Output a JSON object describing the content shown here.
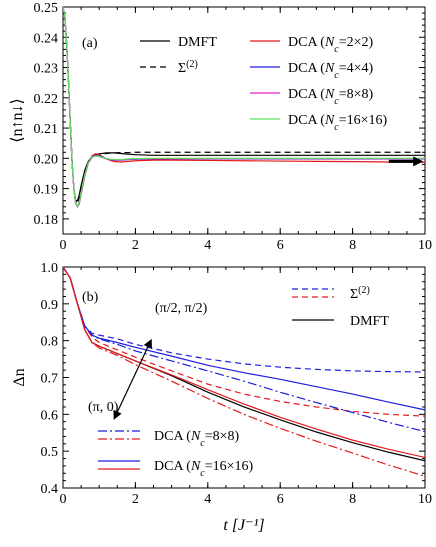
{
  "chart_data": [
    {
      "type": "line",
      "panel_label": "(a)",
      "ylabel": "⟨n↑n↓⟩",
      "xlim": [
        0,
        10
      ],
      "ylim": [
        0.175,
        0.25
      ],
      "x_ticks": [
        0,
        2,
        4,
        6,
        8,
        10
      ],
      "x_tick_labels": [
        "0",
        "2",
        "4",
        "6",
        "8",
        "10"
      ],
      "y_ticks": [
        0.18,
        0.19,
        0.2,
        0.21,
        0.22,
        0.23,
        0.24,
        0.25
      ],
      "y_tick_labels": [
        "0.18",
        "0.19",
        "0.20",
        "0.21",
        "0.22",
        "0.23",
        "0.24",
        "0.25"
      ],
      "legend_position": "top-right",
      "series": [
        {
          "name": "DMFT",
          "legend": {
            "text": "DMFT",
            "sub": "",
            "tail": ""
          },
          "color": "#000000",
          "dash": "solid",
          "x": [
            0,
            0.05,
            0.1,
            0.15,
            0.2,
            0.25,
            0.3,
            0.35,
            0.4,
            0.45,
            0.5,
            0.6,
            0.7,
            0.8,
            0.9,
            1.0,
            1.2,
            1.4,
            1.6,
            1.8,
            2.0,
            2.5,
            3,
            4,
            5,
            6,
            7,
            8,
            9,
            10
          ],
          "y": [
            0.25,
            0.247,
            0.238,
            0.226,
            0.212,
            0.199,
            0.19,
            0.186,
            0.186,
            0.188,
            0.191,
            0.196,
            0.199,
            0.2005,
            0.2012,
            0.2015,
            0.2018,
            0.2018,
            0.2016,
            0.2014,
            0.2012,
            0.201,
            0.201,
            0.201,
            0.201,
            0.201,
            0.201,
            0.201,
            0.201,
            0.201
          ]
        },
        {
          "name": "Σ(2)",
          "legend": {
            "text": "Σ",
            "sub": "",
            "tail": "",
            "sup": "(2)"
          },
          "color": "#000000",
          "dash": "dashed",
          "x": [
            0,
            0.05,
            0.1,
            0.15,
            0.2,
            0.25,
            0.3,
            0.35,
            0.4,
            0.45,
            0.5,
            0.6,
            0.7,
            0.8,
            0.9,
            1.0,
            1.2,
            1.4,
            1.6,
            1.8,
            2.0,
            2.5,
            3,
            4,
            5,
            6,
            7,
            8,
            9,
            10
          ],
          "y": [
            0.25,
            0.247,
            0.238,
            0.226,
            0.212,
            0.199,
            0.19,
            0.186,
            0.185,
            0.187,
            0.19,
            0.195,
            0.1985,
            0.2002,
            0.201,
            0.2014,
            0.2016,
            0.2018,
            0.2019,
            0.2019,
            0.202,
            0.202,
            0.202,
            0.202,
            0.202,
            0.202,
            0.202,
            0.202,
            0.202,
            0.202
          ]
        },
        {
          "name": "DCA (Nc=2×2)",
          "legend": {
            "text": "DCA (",
            "sub": "c",
            "tail": "=2×2)"
          },
          "color": "#e41a1c",
          "dash": "solid",
          "x": [
            0,
            0.05,
            0.1,
            0.15,
            0.2,
            0.25,
            0.3,
            0.35,
            0.4,
            0.45,
            0.5,
            0.6,
            0.7,
            0.8,
            0.9,
            1.0,
            1.2,
            1.4,
            1.6,
            1.8,
            2.0,
            2.5,
            3,
            4,
            5,
            6,
            7,
            8,
            9,
            10
          ],
          "y": [
            0.25,
            0.247,
            0.238,
            0.226,
            0.212,
            0.199,
            0.19,
            0.185,
            0.184,
            0.185,
            0.188,
            0.194,
            0.1985,
            0.2008,
            0.2015,
            0.2012,
            0.1998,
            0.199,
            0.1988,
            0.199,
            0.1992,
            0.1994,
            0.1994,
            0.1993,
            0.1992,
            0.1991,
            0.199,
            0.1989,
            0.1988,
            0.1987
          ]
        },
        {
          "name": "DCA (Nc=4×4)",
          "legend": {
            "text": "DCA (",
            "sub": "c",
            "tail": "=4×4)"
          },
          "color": "#1f1fe0",
          "dash": "solid",
          "x": [
            0,
            0.05,
            0.1,
            0.15,
            0.2,
            0.25,
            0.3,
            0.35,
            0.4,
            0.45,
            0.5,
            0.6,
            0.7,
            0.8,
            0.9,
            1.0,
            1.2,
            1.4,
            1.6,
            1.8,
            2.0,
            2.5,
            3,
            4,
            5,
            6,
            7,
            8,
            9,
            10
          ],
          "y": [
            0.25,
            0.247,
            0.238,
            0.226,
            0.212,
            0.199,
            0.19,
            0.185,
            0.184,
            0.1855,
            0.1885,
            0.1945,
            0.1985,
            0.2005,
            0.201,
            0.2008,
            0.1998,
            0.1994,
            0.1994,
            0.1996,
            0.1997,
            0.1998,
            0.1998,
            0.1998,
            0.1998,
            0.1998,
            0.1998,
            0.1998,
            0.1998,
            0.1998
          ]
        },
        {
          "name": "DCA (Nc=8×8)",
          "legend": {
            "text": "DCA (",
            "sub": "c",
            "tail": "=8×8)"
          },
          "color": "#e020c8",
          "dash": "solid",
          "x": [
            0,
            0.05,
            0.1,
            0.15,
            0.2,
            0.25,
            0.3,
            0.35,
            0.4,
            0.45,
            0.5,
            0.6,
            0.7,
            0.8,
            0.9,
            1.0,
            1.2,
            1.4,
            1.6,
            1.8,
            2.0,
            2.5,
            3,
            4,
            5,
            6,
            7,
            8,
            9,
            10
          ],
          "y": [
            0.25,
            0.247,
            0.238,
            0.226,
            0.212,
            0.199,
            0.19,
            0.185,
            0.184,
            0.1855,
            0.1885,
            0.1945,
            0.1985,
            0.2004,
            0.2008,
            0.2006,
            0.1998,
            0.1995,
            0.1995,
            0.1997,
            0.1998,
            0.1999,
            0.1999,
            0.1999,
            0.1999,
            0.1999,
            0.1999,
            0.1999,
            0.1999,
            0.1999
          ]
        },
        {
          "name": "DCA (Nc=16×16)",
          "legend": {
            "text": "DCA (",
            "sub": "c",
            "tail": "=16×16)"
          },
          "color": "#5ee05e",
          "dash": "solid",
          "x": [
            0,
            0.05,
            0.1,
            0.15,
            0.2,
            0.25,
            0.3,
            0.35,
            0.4,
            0.45,
            0.5,
            0.6,
            0.7,
            0.8,
            0.9,
            1.0,
            1.2,
            1.4,
            1.6,
            1.8,
            2.0,
            2.5,
            3,
            4,
            5,
            6,
            7,
            8,
            9,
            10
          ],
          "y": [
            0.25,
            0.247,
            0.238,
            0.226,
            0.212,
            0.199,
            0.19,
            0.185,
            0.184,
            0.1855,
            0.1885,
            0.1945,
            0.1985,
            0.2004,
            0.2008,
            0.2006,
            0.1999,
            0.1996,
            0.1996,
            0.1998,
            0.1999,
            0.2,
            0.2,
            0.2,
            0.2,
            0.2,
            0.2,
            0.2,
            0.2,
            0.2
          ]
        }
      ],
      "annotations": [
        {
          "type": "arrow",
          "color": "#000000",
          "x_from": 9.0,
          "x_to": 9.95,
          "y": 0.199
        }
      ]
    },
    {
      "type": "line",
      "panel_label": "(b)",
      "xlabel": "t [J⁻¹]",
      "ylabel": "Δn",
      "xlim": [
        0,
        10
      ],
      "ylim": [
        0.4,
        1.0
      ],
      "x_ticks": [
        0,
        2,
        4,
        6,
        8,
        10
      ],
      "x_tick_labels": [
        "0",
        "2",
        "4",
        "6",
        "8",
        "10"
      ],
      "y_ticks": [
        0.4,
        0.5,
        0.6,
        0.7,
        0.8,
        0.9,
        1.0
      ],
      "y_tick_labels": [
        "0.4",
        "0.5",
        "0.6",
        "0.7",
        "0.8",
        "0.9",
        "1.0"
      ],
      "series": [
        {
          "name": "DMFT",
          "color": "#000000",
          "dash": "solid",
          "x": [
            0,
            0.2,
            0.4,
            0.6,
            0.8,
            1.0,
            1.5,
            2,
            3,
            4,
            5,
            6,
            7,
            8,
            9,
            10
          ],
          "y": [
            1.0,
            0.97,
            0.9,
            0.83,
            0.795,
            0.785,
            0.765,
            0.745,
            0.705,
            0.66,
            0.62,
            0.585,
            0.552,
            0.523,
            0.497,
            0.474
          ]
        },
        {
          "name": "Σ(2) (π/2,π/2)",
          "color": "#1f1fe0",
          "dash": "dashed",
          "x": [
            0,
            0.2,
            0.4,
            0.6,
            0.8,
            1.0,
            1.5,
            2,
            3,
            4,
            5,
            6,
            7,
            8,
            9,
            10
          ],
          "y": [
            1.0,
            0.97,
            0.9,
            0.84,
            0.82,
            0.815,
            0.805,
            0.79,
            0.767,
            0.75,
            0.737,
            0.728,
            0.722,
            0.718,
            0.716,
            0.715
          ]
        },
        {
          "name": "Σ(2) (π,0)",
          "color": "#e41a1c",
          "dash": "dashed",
          "x": [
            0,
            0.2,
            0.4,
            0.6,
            0.8,
            1.0,
            1.5,
            2,
            3,
            4,
            5,
            6,
            7,
            8,
            9,
            10
          ],
          "y": [
            1.0,
            0.97,
            0.9,
            0.84,
            0.81,
            0.795,
            0.775,
            0.755,
            0.718,
            0.682,
            0.655,
            0.635,
            0.62,
            0.608,
            0.6,
            0.595
          ]
        },
        {
          "name": "DCA (Nc=8×8) (π/2,π/2)",
          "color": "#1f1fe0",
          "dash": "dashdot",
          "x": [
            0,
            0.2,
            0.4,
            0.6,
            0.8,
            1.0,
            1.5,
            2,
            3,
            4,
            5,
            6,
            7,
            8,
            9,
            10
          ],
          "y": [
            1.0,
            0.97,
            0.9,
            0.84,
            0.815,
            0.805,
            0.79,
            0.772,
            0.745,
            0.718,
            0.69,
            0.66,
            0.632,
            0.605,
            0.578,
            0.553
          ]
        },
        {
          "name": "DCA (Nc=8×8) (π,0)",
          "color": "#e41a1c",
          "dash": "dashdot",
          "x": [
            0,
            0.2,
            0.4,
            0.6,
            0.8,
            1.0,
            1.5,
            2,
            3,
            4,
            5,
            6,
            7,
            8,
            9,
            10
          ],
          "y": [
            1.0,
            0.97,
            0.9,
            0.83,
            0.795,
            0.78,
            0.76,
            0.735,
            0.69,
            0.643,
            0.6,
            0.562,
            0.527,
            0.495,
            0.462,
            0.432
          ]
        },
        {
          "name": "DCA (Nc=16×16) (π/2,π/2)",
          "color": "#1f1fe0",
          "dash": "solid",
          "x": [
            0,
            0.2,
            0.4,
            0.6,
            0.8,
            1.0,
            1.5,
            2,
            3,
            4,
            5,
            6,
            7,
            8,
            9,
            10
          ],
          "y": [
            1.0,
            0.97,
            0.9,
            0.84,
            0.815,
            0.807,
            0.795,
            0.782,
            0.758,
            0.733,
            0.713,
            0.695,
            0.675,
            0.655,
            0.633,
            0.612
          ]
        },
        {
          "name": "DCA (Nc=16×16) (π,0)",
          "color": "#e41a1c",
          "dash": "solid",
          "x": [
            0,
            0.2,
            0.4,
            0.6,
            0.8,
            1.0,
            1.5,
            2,
            3,
            4,
            5,
            6,
            7,
            8,
            9,
            10
          ],
          "y": [
            1.0,
            0.97,
            0.9,
            0.83,
            0.795,
            0.785,
            0.765,
            0.745,
            0.707,
            0.667,
            0.628,
            0.592,
            0.56,
            0.53,
            0.505,
            0.483
          ]
        }
      ],
      "legend_items": [
        {
          "label": {
            "text": "Σ",
            "sub": "",
            "tail": "",
            "sup": "(2)"
          },
          "lines": [
            {
              "color": "#1f1fe0",
              "dash": "dashed"
            },
            {
              "color": "#e41a1c",
              "dash": "dashed"
            }
          ],
          "position": "top-right"
        },
        {
          "label": {
            "text": "DMFT",
            "sub": "",
            "tail": ""
          },
          "lines": [
            {
              "color": "#000000",
              "dash": "solid"
            }
          ],
          "position": "top-right"
        },
        {
          "label": {
            "text": "DCA (",
            "sub": "c",
            "tail": "=8×8)"
          },
          "lines": [
            {
              "color": "#1f1fe0",
              "dash": "dashdot"
            },
            {
              "color": "#e41a1c",
              "dash": "dashdot"
            }
          ],
          "position": "bottom-left"
        },
        {
          "label": {
            "text": "DCA (",
            "sub": "c",
            "tail": "=16×16)"
          },
          "lines": [
            {
              "color": "#1f1fe0",
              "dash": "solid"
            },
            {
              "color": "#e41a1c",
              "dash": "solid"
            }
          ],
          "position": "bottom-left"
        }
      ],
      "annotations": [
        {
          "type": "double-arrow",
          "color": "#000000",
          "x_from": 1.4,
          "y_from": 0.585,
          "x_to": 2.45,
          "y_to": 0.805,
          "label_top": "(π/2, π/2)",
          "label_bottom": "(π, 0)"
        }
      ]
    }
  ]
}
